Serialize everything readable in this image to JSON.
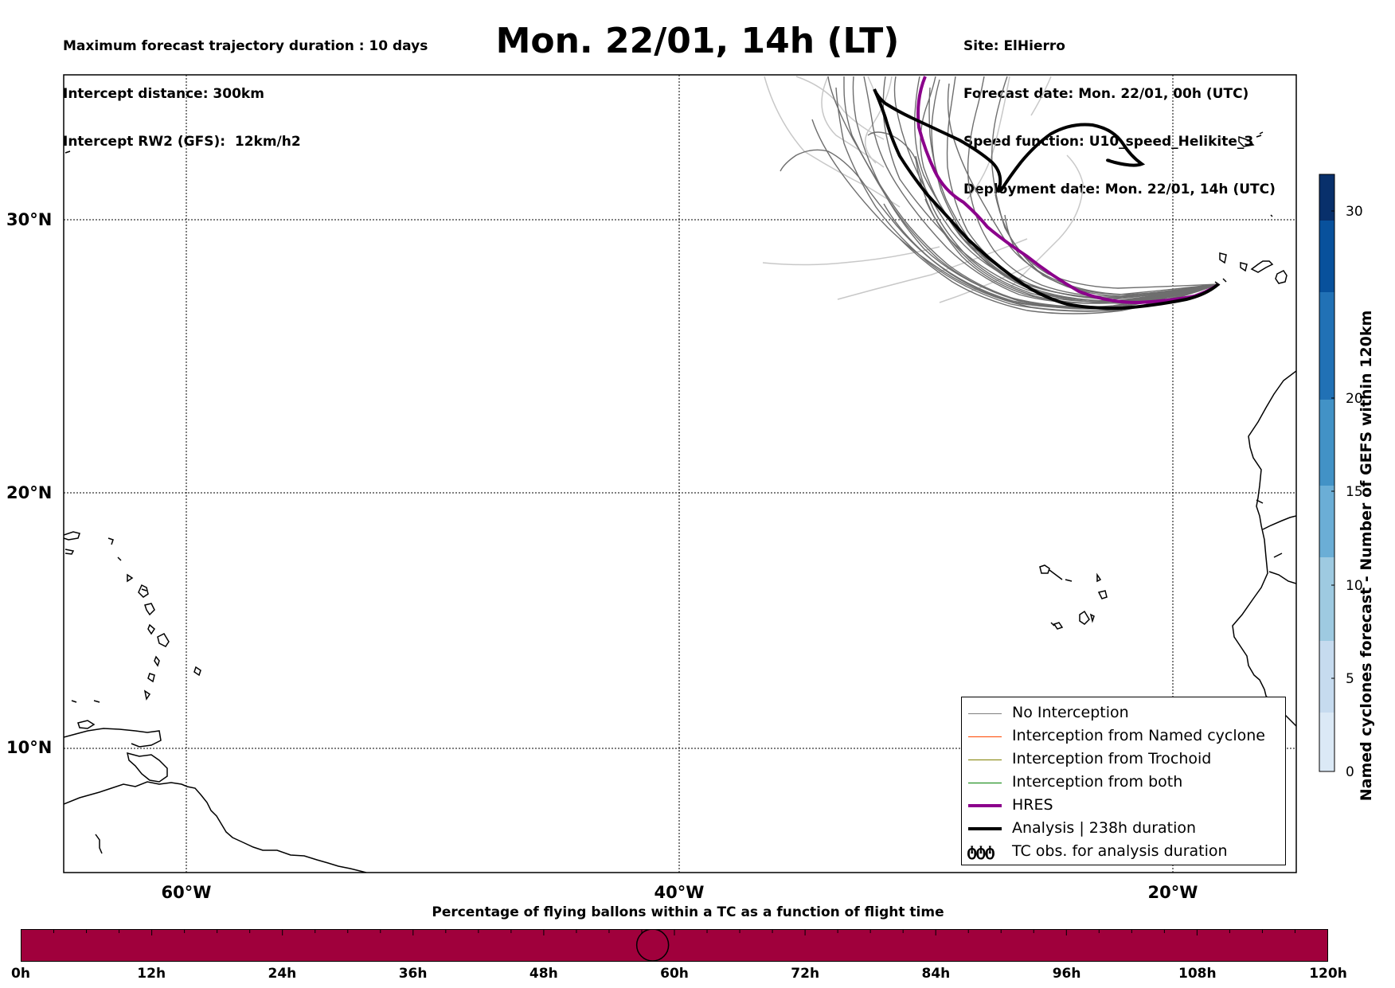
{
  "header": {
    "left_lines": [
      "Maximum forecast trajectory duration : 10 days",
      "Intercept distance: 300km",
      "Intercept RW2 (GFS):  12km/h2"
    ],
    "title": "Mon. 22/01, 14h (LT)",
    "right_lines": [
      "Site: ElHierro",
      "Forecast date: Mon. 22/01, 00h (UTC)",
      "Speed function: U10_speed_Helikite_3",
      "Deployment date: Mon. 22/01, 14h (UTC)"
    ]
  },
  "map": {
    "lat_labels": [
      "30°N",
      "20°N",
      "10°N"
    ],
    "lon_labels": [
      "60°W",
      "40°W",
      "20°W"
    ],
    "colors": {
      "no_interception": "#6e6e6e",
      "hres": "#8b008b",
      "analysis": "#000000",
      "faint": "#c8c8c8"
    }
  },
  "legend": {
    "items": [
      {
        "label": "No Interception",
        "color": "#7f7f7f",
        "width": 1.5
      },
      {
        "label": "Interception from Named cyclone",
        "color": "#ff4500",
        "width": 1.5
      },
      {
        "label": "Interception from Trochoid",
        "color": "#808000",
        "width": 1.5
      },
      {
        "label": "Interception from both",
        "color": "#008000",
        "width": 1.5
      },
      {
        "label": "HRES",
        "color": "#8b008b",
        "width": 4
      },
      {
        "label": "Analysis | 238h duration",
        "color": "#000000",
        "width": 4
      },
      {
        "label": "TC obs. for analysis duration",
        "glyph": "ტტტ"
      }
    ]
  },
  "colorbar": {
    "title": "Named cyclones forecast - Number of GEFS within 120km",
    "ticks": [
      "0",
      "5",
      "10",
      "15",
      "20",
      "30"
    ],
    "colors": [
      "#dbe9f6",
      "#c6dbef",
      "#9ecae1",
      "#6baed6",
      "#4292c6",
      "#2171b5",
      "#08519c",
      "#08306b"
    ]
  },
  "timeline": {
    "title": "Percentage of flying ballons within a TC as a function of flight time",
    "labels": [
      "0h",
      "12h",
      "24h",
      "36h",
      "48h",
      "60h",
      "72h",
      "84h",
      "96h",
      "108h",
      "120h"
    ],
    "bar_color": "#a0003c",
    "marker_hour": 58
  }
}
